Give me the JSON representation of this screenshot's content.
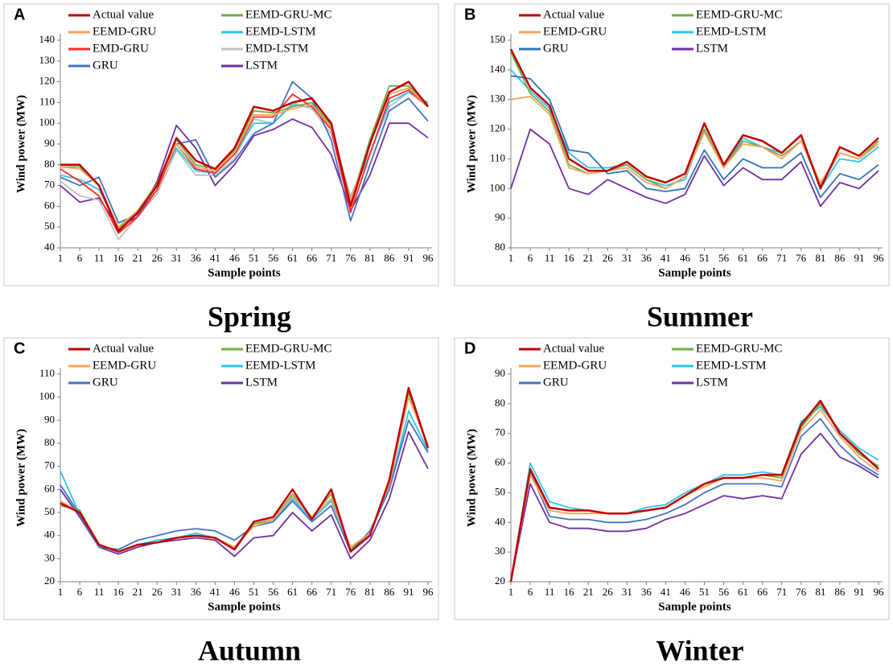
{
  "chart_data": [
    {
      "type": "line",
      "label": "A",
      "title": "Spring",
      "xlabel": "Sample points",
      "ylabel": "Wind power (MW)",
      "x": [
        1,
        6,
        11,
        16,
        21,
        26,
        31,
        36,
        41,
        46,
        51,
        56,
        61,
        66,
        71,
        76,
        81,
        86,
        91,
        96
      ],
      "xlim": [
        1,
        96
      ],
      "xticks": [
        1,
        6,
        11,
        16,
        21,
        26,
        31,
        36,
        41,
        46,
        51,
        56,
        61,
        66,
        71,
        76,
        81,
        86,
        91,
        96
      ],
      "ylim": [
        40,
        140
      ],
      "yticks": [
        40,
        50,
        60,
        70,
        80,
        90,
        100,
        110,
        120,
        130,
        140
      ],
      "series": [
        {
          "name": "Actual value",
          "color": "#c00000",
          "values": [
            80,
            80,
            70,
            48,
            57,
            70,
            93,
            82,
            78,
            88,
            108,
            106,
            110,
            112,
            100,
            60,
            90,
            115,
            120,
            108
          ]
        },
        {
          "name": "EEMD-GRU",
          "color": "#f4a460",
          "values": [
            79,
            78,
            70,
            50,
            58,
            70,
            90,
            79,
            77,
            86,
            104,
            104,
            107,
            109,
            98,
            63,
            90,
            114,
            117,
            108
          ]
        },
        {
          "name": "EMD-GRU",
          "color": "#ff2a2a",
          "values": [
            78,
            72,
            65,
            47,
            55,
            68,
            90,
            78,
            76,
            85,
            103,
            103,
            114,
            108,
            97,
            57,
            85,
            112,
            116,
            108
          ]
        },
        {
          "name": "GRU",
          "color": "#4472c4",
          "values": [
            74,
            70,
            74,
            52,
            56,
            68,
            90,
            92,
            74,
            82,
            95,
            100,
            120,
            112,
            92,
            53,
            80,
            106,
            112,
            101
          ]
        },
        {
          "name": "EEMD-GRU-MC",
          "color": "#70ad47",
          "values": [
            79,
            79,
            70,
            49,
            58,
            71,
            92,
            80,
            78,
            87,
            106,
            105,
            108,
            110,
            99,
            62,
            92,
            118,
            118,
            109
          ]
        },
        {
          "name": "EEMD-LSTM",
          "color": "#2ec4f0",
          "values": [
            75,
            73,
            68,
            50,
            57,
            70,
            88,
            77,
            76,
            85,
            100,
            100,
            109,
            108,
            97,
            64,
            85,
            110,
            115,
            110
          ]
        },
        {
          "name": "EMD-LSTM",
          "color": "#c0c0c0",
          "values": [
            72,
            65,
            63,
            44,
            55,
            66,
            87,
            75,
            75,
            83,
            102,
            100,
            110,
            107,
            95,
            65,
            86,
            108,
            115,
            108
          ]
        },
        {
          "name": "LSTM",
          "color": "#7030a0",
          "values": [
            70,
            62,
            64,
            50,
            55,
            72,
            99,
            88,
            70,
            80,
            94,
            97,
            102,
            98,
            85,
            58,
            75,
            100,
            100,
            93
          ]
        }
      ]
    },
    {
      "type": "line",
      "label": "B",
      "title": "Summer",
      "xlabel": "Sample points",
      "ylabel": "Wind power (MW)",
      "x": [
        1,
        6,
        11,
        16,
        21,
        26,
        31,
        36,
        41,
        46,
        51,
        56,
        61,
        66,
        71,
        76,
        81,
        86,
        91,
        96
      ],
      "xlim": [
        1,
        96
      ],
      "xticks": [
        1,
        6,
        11,
        16,
        21,
        26,
        31,
        36,
        41,
        46,
        51,
        56,
        61,
        66,
        71,
        76,
        81,
        86,
        91,
        96
      ],
      "ylim": [
        80,
        150
      ],
      "yticks": [
        80,
        90,
        100,
        110,
        120,
        130,
        140,
        150
      ],
      "series": [
        {
          "name": "Actual value",
          "color": "#c00000",
          "values": [
            147,
            134,
            128,
            110,
            106,
            106,
            109,
            104,
            102,
            105,
            122,
            108,
            118,
            116,
            112,
            118,
            100,
            114,
            111,
            117
          ]
        },
        {
          "name": "EEMD-GRU",
          "color": "#f4a460",
          "values": [
            130,
            131,
            125,
            107,
            105,
            106,
            107,
            102,
            100,
            104,
            119,
            107,
            115,
            114,
            110,
            116,
            102,
            112,
            110,
            115
          ]
        },
        {
          "name": "GRU",
          "color": "#2e75b6",
          "values": [
            138,
            137,
            130,
            113,
            112,
            105,
            106,
            100,
            99,
            100,
            113,
            103,
            110,
            107,
            107,
            112,
            97,
            105,
            103,
            108
          ]
        },
        {
          "name": "EEMD-GRU-MC",
          "color": "#70ad47",
          "values": [
            146,
            132,
            126,
            108,
            105,
            106,
            108,
            103,
            100,
            104,
            120,
            107,
            116,
            114,
            111,
            116,
            101,
            112,
            110,
            116
          ]
        },
        {
          "name": "EEMD-LSTM",
          "color": "#2ec4f0",
          "values": [
            140,
            133,
            127,
            112,
            107,
            107,
            108,
            103,
            101,
            103,
            120,
            107,
            117,
            114,
            112,
            118,
            100,
            110,
            109,
            114
          ]
        },
        {
          "name": "LSTM",
          "color": "#7030a0",
          "values": [
            100,
            120,
            115,
            100,
            98,
            103,
            100,
            97,
            95,
            98,
            111,
            101,
            107,
            103,
            103,
            109,
            94,
            102,
            100,
            106
          ]
        }
      ]
    },
    {
      "type": "line",
      "label": "C",
      "title": "Autumn",
      "xlabel": "Sample points",
      "ylabel": "Wind power (MW)",
      "x": [
        1,
        6,
        11,
        16,
        21,
        26,
        31,
        36,
        41,
        46,
        51,
        56,
        61,
        66,
        71,
        76,
        81,
        86,
        91,
        96
      ],
      "xlim": [
        1,
        96
      ],
      "xticks": [
        1,
        6,
        11,
        16,
        21,
        26,
        31,
        36,
        41,
        46,
        51,
        56,
        61,
        66,
        71,
        76,
        81,
        86,
        91,
        96
      ],
      "ylim": [
        20,
        110
      ],
      "yticks": [
        20,
        30,
        40,
        50,
        60,
        70,
        80,
        90,
        100,
        110
      ],
      "series": [
        {
          "name": "Actual value",
          "color": "#c00000",
          "values": [
            54,
            50,
            36,
            33,
            36,
            37,
            39,
            40,
            39,
            34,
            46,
            48,
            60,
            47,
            60,
            33,
            40,
            64,
            104,
            78
          ]
        },
        {
          "name": "EEMD-GRU",
          "color": "#f4a460",
          "values": [
            55,
            50,
            36,
            33,
            36,
            37,
            39,
            40,
            39,
            35,
            44,
            47,
            57,
            48,
            56,
            35,
            41,
            62,
            100,
            79
          ]
        },
        {
          "name": "GRU",
          "color": "#4472c4",
          "values": [
            62,
            49,
            35,
            34,
            38,
            40,
            42,
            43,
            42,
            38,
            44,
            46,
            55,
            46,
            53,
            33,
            42,
            60,
            90,
            76
          ]
        },
        {
          "name": "EEMD-GRU-MC",
          "color": "#70ad47",
          "values": [
            53,
            51,
            36,
            33,
            36,
            37,
            39,
            40,
            39,
            34,
            45,
            47,
            58,
            48,
            58,
            34,
            41,
            63,
            102,
            79
          ]
        },
        {
          "name": "EEMD-LSTM",
          "color": "#2ec4f0",
          "values": [
            68,
            49,
            36,
            33,
            36,
            38,
            39,
            41,
            39,
            35,
            44,
            46,
            56,
            47,
            55,
            35,
            41,
            60,
            94,
            77
          ]
        },
        {
          "name": "LSTM",
          "color": "#7030a0",
          "values": [
            60,
            48,
            35,
            32,
            35,
            37,
            38,
            39,
            38,
            31,
            39,
            40,
            50,
            42,
            49,
            30,
            38,
            56,
            85,
            69
          ]
        }
      ]
    },
    {
      "type": "line",
      "label": "D",
      "title": "Winter",
      "xlabel": "Sample points",
      "ylabel": "Wind power (MW)",
      "x": [
        1,
        6,
        11,
        16,
        21,
        26,
        31,
        36,
        41,
        46,
        51,
        56,
        61,
        66,
        71,
        76,
        81,
        86,
        91,
        96
      ],
      "xlim": [
        1,
        96
      ],
      "xticks": [
        1,
        6,
        11,
        16,
        21,
        26,
        31,
        36,
        41,
        46,
        51,
        56,
        61,
        66,
        71,
        76,
        81,
        86,
        91,
        96
      ],
      "ylim": [
        20,
        90
      ],
      "yticks": [
        20,
        30,
        40,
        50,
        60,
        70,
        80,
        90
      ],
      "series": [
        {
          "name": "Actual value",
          "color": "#c00000",
          "values": [
            20,
            58,
            45,
            44,
            44,
            43,
            43,
            44,
            45,
            49,
            53,
            55,
            55,
            56,
            56,
            73,
            81,
            70,
            64,
            58
          ]
        },
        {
          "name": "EEMD-GRU",
          "color": "#f4a460",
          "values": [
            20,
            56,
            44,
            43,
            43,
            43,
            43,
            44,
            45,
            49,
            52,
            55,
            55,
            55,
            54,
            71,
            78,
            69,
            62,
            57
          ]
        },
        {
          "name": "GRU",
          "color": "#4472c4",
          "values": [
            20,
            57,
            42,
            41,
            41,
            40,
            40,
            41,
            43,
            46,
            50,
            53,
            53,
            53,
            52,
            69,
            75,
            66,
            60,
            56
          ]
        },
        {
          "name": "EEMD-GRU-MC",
          "color": "#70ad47",
          "values": [
            20,
            57,
            45,
            44,
            44,
            43,
            43,
            44,
            45,
            49,
            52,
            55,
            55,
            56,
            55,
            72,
            80,
            70,
            63,
            59
          ]
        },
        {
          "name": "EEMD-LSTM",
          "color": "#2ec4f0",
          "values": [
            20,
            60,
            47,
            45,
            44,
            43,
            43,
            45,
            46,
            50,
            53,
            56,
            56,
            57,
            56,
            74,
            79,
            71,
            65,
            61
          ]
        },
        {
          "name": "LSTM",
          "color": "#7030a0",
          "values": [
            20,
            53,
            40,
            38,
            38,
            37,
            37,
            38,
            41,
            43,
            46,
            49,
            48,
            49,
            48,
            63,
            70,
            62,
            59,
            55
          ]
        }
      ]
    }
  ]
}
